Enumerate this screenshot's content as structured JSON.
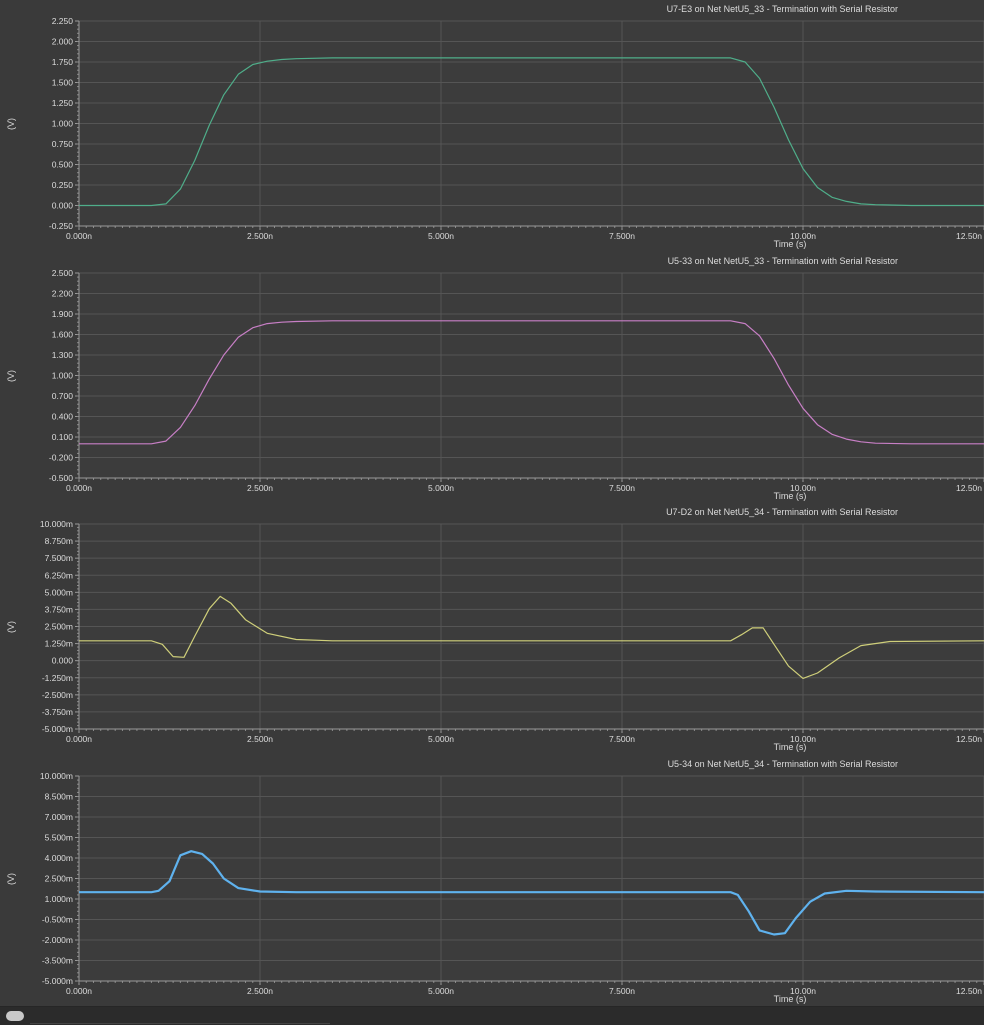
{
  "chart_data": [
    {
      "type": "line",
      "title": "U7-E3 on Net NetU5_33 - Termination with Serial Resistor",
      "xlabel": "Time (s)",
      "ylabel": "(V)",
      "xlim": [
        0,
        12.5
      ],
      "ylim": [
        -0.25,
        2.25
      ],
      "x_ticks": [
        "0.000n",
        "2.500n",
        "5.000n",
        "7.500n",
        "10.00n",
        "12.50n"
      ],
      "y_ticks": [
        "-0.250",
        "0.000",
        "0.250",
        "0.500",
        "0.750",
        "1.000",
        "1.250",
        "1.500",
        "1.750",
        "2.000",
        "2.250"
      ],
      "grid": true,
      "series_color": "#4fae8a",
      "series": [
        {
          "x": [
            0,
            1.0,
            1.2,
            1.4,
            1.6,
            1.8,
            2.0,
            2.2,
            2.4,
            2.6,
            2.8,
            3.0,
            3.5,
            9.0,
            9.2,
            9.4,
            9.6,
            9.8,
            10.0,
            10.2,
            10.4,
            10.6,
            10.8,
            11.0,
            11.5,
            12.5
          ],
          "y": [
            0,
            0,
            0.02,
            0.2,
            0.55,
            0.98,
            1.35,
            1.6,
            1.72,
            1.76,
            1.78,
            1.79,
            1.8,
            1.8,
            1.75,
            1.55,
            1.2,
            0.8,
            0.45,
            0.22,
            0.1,
            0.05,
            0.02,
            0.01,
            0,
            0
          ]
        }
      ]
    },
    {
      "type": "line",
      "title": "U5-33 on Net NetU5_33 - Termination with Serial Resistor",
      "xlabel": "Time (s)",
      "ylabel": "(V)",
      "xlim": [
        0,
        12.5
      ],
      "ylim": [
        -0.5,
        2.5
      ],
      "x_ticks": [
        "0.000n",
        "2.500n",
        "5.000n",
        "7.500n",
        "10.00n",
        "12.50n"
      ],
      "y_ticks": [
        "-0.500",
        "-0.200",
        "0.100",
        "0.400",
        "0.700",
        "1.000",
        "1.300",
        "1.600",
        "1.900",
        "2.200",
        "2.500"
      ],
      "grid": true,
      "series_color": "#c87fc6",
      "series": [
        {
          "x": [
            0,
            1.0,
            1.2,
            1.4,
            1.6,
            1.8,
            2.0,
            2.2,
            2.4,
            2.6,
            2.8,
            3.0,
            3.5,
            9.0,
            9.2,
            9.4,
            9.6,
            9.8,
            10.0,
            10.2,
            10.4,
            10.6,
            10.8,
            11.0,
            11.5,
            12.5
          ],
          "y": [
            0,
            0,
            0.04,
            0.24,
            0.56,
            0.95,
            1.3,
            1.56,
            1.7,
            1.76,
            1.78,
            1.79,
            1.8,
            1.8,
            1.76,
            1.58,
            1.25,
            0.86,
            0.52,
            0.28,
            0.14,
            0.07,
            0.03,
            0.01,
            0,
            0
          ]
        }
      ]
    },
    {
      "type": "line",
      "title": "U7-D2 on Net NetU5_34 - Termination with Serial Resistor",
      "xlabel": "Time (s)",
      "ylabel": "(V)",
      "xlim": [
        0,
        12.5
      ],
      "ylim": [
        -5,
        10
      ],
      "x_ticks": [
        "0.000n",
        "2.500n",
        "5.000n",
        "7.500n",
        "10.00n",
        "12.50n"
      ],
      "y_ticks": [
        "-5.000m",
        "-3.750m",
        "-2.500m",
        "-1.250m",
        "0.000",
        "1.250m",
        "2.500m",
        "3.750m",
        "5.000m",
        "6.250m",
        "7.500m",
        "8.750m",
        "10.000m"
      ],
      "grid": true,
      "series_color": "#cfcf7a",
      "series": [
        {
          "x": [
            0,
            1.0,
            1.15,
            1.3,
            1.45,
            1.6,
            1.8,
            1.95,
            2.1,
            2.3,
            2.6,
            3.0,
            3.5,
            9.0,
            9.15,
            9.3,
            9.45,
            9.6,
            9.8,
            10.0,
            10.2,
            10.5,
            10.8,
            11.2,
            12.5
          ],
          "y": [
            1.45,
            1.45,
            1.2,
            0.3,
            0.25,
            1.8,
            3.8,
            4.7,
            4.2,
            3.0,
            2.0,
            1.55,
            1.45,
            1.45,
            1.9,
            2.4,
            2.4,
            1.2,
            -0.4,
            -1.3,
            -0.9,
            0.2,
            1.1,
            1.4,
            1.45
          ]
        }
      ]
    },
    {
      "type": "line",
      "title": "U5-34 on Net NetU5_34 - Termination with Serial Resistor",
      "xlabel": "Time (s)",
      "ylabel": "(V)",
      "xlim": [
        0,
        12.5
      ],
      "ylim": [
        -5,
        10
      ],
      "x_ticks": [
        "0.000n",
        "2.500n",
        "5.000n",
        "7.500n",
        "10.00n",
        "12.50n"
      ],
      "y_ticks": [
        "-5.000m",
        "-3.500m",
        "-2.000m",
        "-0.500m",
        "1.000m",
        "2.500m",
        "4.000m",
        "5.500m",
        "7.000m",
        "8.500m",
        "10.000m"
      ],
      "grid": true,
      "series_color": "#5fb2ee",
      "series": [
        {
          "x": [
            0,
            1.0,
            1.1,
            1.25,
            1.4,
            1.55,
            1.7,
            1.85,
            2.0,
            2.2,
            2.5,
            3.0,
            9.0,
            9.1,
            9.25,
            9.4,
            9.6,
            9.75,
            9.9,
            10.1,
            10.3,
            10.6,
            11.0,
            12.5
          ],
          "y": [
            1.5,
            1.5,
            1.6,
            2.3,
            4.2,
            4.5,
            4.3,
            3.6,
            2.5,
            1.8,
            1.55,
            1.5,
            1.5,
            1.3,
            0.1,
            -1.3,
            -1.6,
            -1.5,
            -0.4,
            0.8,
            1.4,
            1.6,
            1.55,
            1.5
          ]
        }
      ]
    }
  ]
}
